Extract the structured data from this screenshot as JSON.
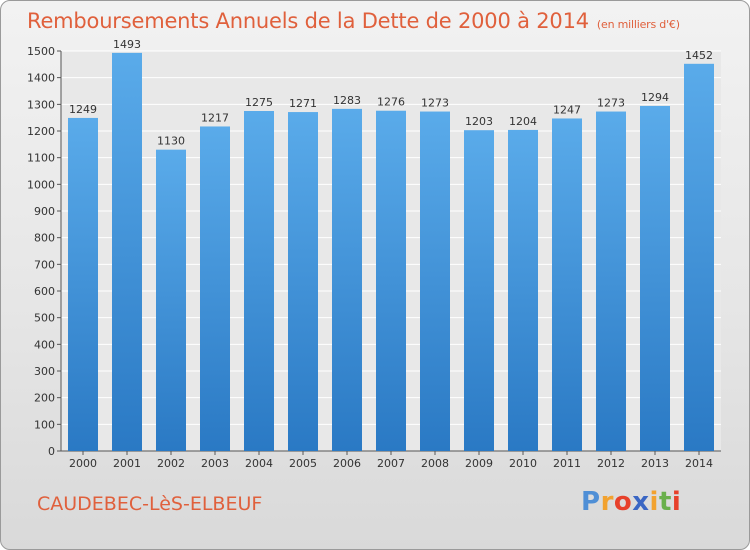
{
  "chart_data": {
    "type": "bar",
    "title": "Remboursements Annuels de la Dette de 2000 à 2014",
    "subtitle": "(en milliers d'€)",
    "xlabel": "",
    "ylabel": "",
    "categories": [
      "2000",
      "2001",
      "2002",
      "2003",
      "2004",
      "2005",
      "2006",
      "2007",
      "2008",
      "2009",
      "2010",
      "2011",
      "2012",
      "2013",
      "2014"
    ],
    "values": [
      1249,
      1493,
      1130,
      1217,
      1275,
      1271,
      1283,
      1276,
      1273,
      1203,
      1204,
      1247,
      1273,
      1294,
      1452
    ],
    "ylim": [
      0,
      1500
    ],
    "yticks": [
      0,
      100,
      200,
      300,
      400,
      500,
      600,
      700,
      800,
      900,
      1000,
      1100,
      1200,
      1300,
      1400,
      1500
    ],
    "grid": true,
    "legend": "none",
    "bar_color_light": "#5aabea",
    "bar_color_dark": "#2a79c4",
    "grid_color": "#ffffff"
  },
  "commune": "CAUDEBEC-LèS-ELBEUF",
  "brand": {
    "letters": [
      "P",
      "r",
      "o",
      "x",
      "i",
      "t",
      "i"
    ],
    "colors": [
      "#4f8fd6",
      "#f2a22f",
      "#e7412b",
      "#3a66c4",
      "#f2a22f",
      "#6ab04c",
      "#e7412b"
    ]
  },
  "title_color": "#e0603c"
}
